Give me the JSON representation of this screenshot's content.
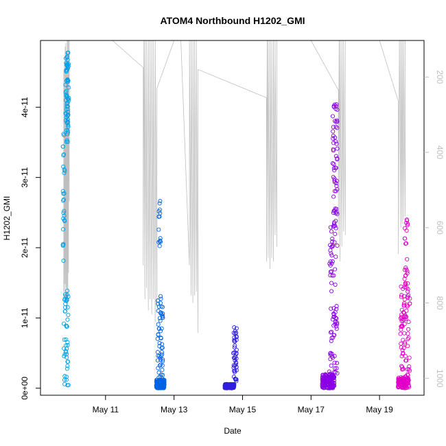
{
  "chart_data": {
    "type": "scatter",
    "title": "ATOM4 Northbound H1202_GMI",
    "xlabel": "Date",
    "ylabel": "H1202_GMI",
    "x_ticks": [
      {
        "label": "May 11",
        "day": 11
      },
      {
        "label": "May 13",
        "day": 13
      },
      {
        "label": "May 15",
        "day": 15
      },
      {
        "label": "May 17",
        "day": 17
      },
      {
        "label": "May 19",
        "day": 19
      }
    ],
    "xlim_day": [
      9.1,
      20.3
    ],
    "ylim": [
      -1e-12,
      4.95e-11
    ],
    "y_ticks": [
      {
        "label": "0e+00",
        "value": 0
      },
      {
        "label": "1e-11",
        "value": 1e-11
      },
      {
        "label": "2e-11",
        "value": 2e-11
      },
      {
        "label": "3e-11",
        "value": 3e-11
      },
      {
        "label": "4e-11",
        "value": 4e-11
      }
    ],
    "right_axis": {
      "reversed": true,
      "ylim": [
        1045,
        103
      ],
      "ticks": [
        {
          "label": "200",
          "value": 200
        },
        {
          "label": "400",
          "value": 400
        },
        {
          "label": "600",
          "value": 600
        },
        {
          "label": "800",
          "value": 800
        },
        {
          "label": "1000",
          "value": 1000
        }
      ],
      "color": "#bebebe"
    },
    "series": [
      {
        "color": "#009ee8",
        "day_range": [
          9.75,
          9.98
        ],
        "clusters": [
          {
            "day": 9.88,
            "spread": 0.05,
            "ymin": 3.5e-11,
            "ymax": 4.78e-11,
            "count": 70
          },
          {
            "day": 9.78,
            "spread": 0.03,
            "ymin": 1.8e-11,
            "ymax": 3.65e-11,
            "count": 26
          },
          {
            "day": 9.85,
            "spread": 0.07,
            "ymin": 0,
            "ymax": 1.4e-11,
            "count": 45
          }
        ]
      },
      {
        "color": "#0064e6",
        "day_range": [
          12.45,
          12.95
        ],
        "clusters": [
          {
            "day": 12.6,
            "spread": 0.12,
            "ymin": 0,
            "ymax": 1.2e-12,
            "count": 180
          },
          {
            "day": 12.6,
            "spread": 0.08,
            "ymin": 1.2e-12,
            "ymax": 1.35e-11,
            "count": 55
          },
          {
            "day": 12.58,
            "spread": 0.03,
            "ymin": 2e-11,
            "ymax": 2.75e-11,
            "count": 14
          }
        ]
      },
      {
        "color": "#2f1de0",
        "day_range": [
          14.45,
          14.85
        ],
        "clusters": [
          {
            "day": 14.62,
            "spread": 0.14,
            "ymin": 0,
            "ymax": 6e-13,
            "count": 140
          },
          {
            "day": 14.78,
            "spread": 0.05,
            "ymin": 6e-13,
            "ymax": 9e-12,
            "count": 45
          }
        ]
      },
      {
        "color": "#8a00e6",
        "day_range": [
          17.3,
          17.85
        ],
        "clusters": [
          {
            "day": 17.5,
            "spread": 0.18,
            "ymin": 0,
            "ymax": 2e-12,
            "count": 150
          },
          {
            "day": 17.65,
            "spread": 0.12,
            "ymin": 2e-12,
            "ymax": 2.3e-11,
            "count": 75
          },
          {
            "day": 17.7,
            "spread": 0.07,
            "ymin": 2.3e-11,
            "ymax": 4.1e-11,
            "count": 60
          }
        ]
      },
      {
        "color": "#e100c8",
        "day_range": [
          19.5,
          19.95
        ],
        "clusters": [
          {
            "day": 19.7,
            "spread": 0.16,
            "ymin": 0,
            "ymax": 1.5e-12,
            "count": 130
          },
          {
            "day": 19.75,
            "spread": 0.14,
            "ymin": 1.5e-12,
            "ymax": 1.5e-11,
            "count": 85
          },
          {
            "day": 19.78,
            "spread": 0.05,
            "ymin": 1.5e-11,
            "ymax": 2.4e-11,
            "count": 20
          }
        ]
      }
    ],
    "profile_line": {
      "color": "#bebebe",
      "axis": "right",
      "points": [
        [
          9.78,
          770
        ],
        [
          9.78,
          180
        ],
        [
          9.8,
          780
        ],
        [
          9.8,
          160
        ],
        [
          9.82,
          750
        ],
        [
          9.82,
          120
        ],
        [
          9.84,
          790
        ],
        [
          9.84,
          110
        ],
        [
          9.86,
          760
        ],
        [
          9.86,
          140
        ],
        [
          9.88,
          800
        ],
        [
          9.88,
          103
        ],
        [
          9.9,
          820
        ],
        [
          9.9,
          103
        ],
        [
          9.92,
          720
        ],
        [
          9.92,
          103
        ],
        [
          9.94,
          530
        ],
        [
          9.94,
          103
        ],
        [
          10.3,
          103
        ],
        [
          11.2,
          103
        ],
        [
          12.1,
          175
        ],
        [
          12.1,
          700
        ],
        [
          12.12,
          103
        ],
        [
          12.15,
          790
        ],
        [
          12.15,
          103
        ],
        [
          12.2,
          760
        ],
        [
          12.2,
          103
        ],
        [
          12.25,
          820
        ],
        [
          12.25,
          103
        ],
        [
          12.3,
          790
        ],
        [
          12.3,
          103
        ],
        [
          12.35,
          830
        ],
        [
          12.35,
          103
        ],
        [
          12.4,
          790
        ],
        [
          12.4,
          103
        ],
        [
          12.45,
          850
        ],
        [
          12.45,
          103
        ],
        [
          12.5,
          810
        ],
        [
          12.5,
          230
        ],
        [
          13.0,
          103
        ],
        [
          13.2,
          103
        ],
        [
          13.45,
          700
        ],
        [
          13.45,
          103
        ],
        [
          13.5,
          780
        ],
        [
          13.5,
          103
        ],
        [
          13.55,
          800
        ],
        [
          13.55,
          103
        ],
        [
          13.6,
          780
        ],
        [
          13.6,
          103
        ],
        [
          13.65,
          770
        ],
        [
          13.65,
          103
        ],
        [
          13.7,
          880
        ],
        [
          13.7,
          180
        ],
        [
          15.7,
          255
        ],
        [
          15.7,
          690
        ],
        [
          15.72,
          103
        ],
        [
          15.75,
          680
        ],
        [
          15.75,
          103
        ],
        [
          15.8,
          710
        ],
        [
          15.8,
          103
        ],
        [
          15.85,
          680
        ],
        [
          15.85,
          103
        ],
        [
          15.9,
          690
        ],
        [
          15.9,
          103
        ],
        [
          15.95,
          620
        ],
        [
          15.95,
          103
        ],
        [
          16.0,
          650
        ],
        [
          16.0,
          103
        ],
        [
          16.1,
          103
        ],
        [
          17.0,
          103
        ],
        [
          17.8,
          235
        ],
        [
          17.8,
          620
        ],
        [
          17.82,
          103
        ],
        [
          17.85,
          690
        ],
        [
          17.85,
          103
        ],
        [
          17.9,
          650
        ],
        [
          17.9,
          103
        ],
        [
          17.95,
          610
        ],
        [
          17.95,
          103
        ],
        [
          18.0,
          620
        ],
        [
          18.0,
          103
        ],
        [
          18.05,
          103
        ],
        [
          19.0,
          103
        ],
        [
          19.55,
          265
        ],
        [
          19.55,
          670
        ],
        [
          19.58,
          103
        ],
        [
          19.62,
          600
        ],
        [
          19.62,
          103
        ],
        [
          19.66,
          590
        ],
        [
          19.66,
          103
        ],
        [
          19.7,
          580
        ],
        [
          19.7,
          103
        ],
        [
          19.75,
          570
        ],
        [
          19.75,
          103
        ]
      ]
    }
  }
}
